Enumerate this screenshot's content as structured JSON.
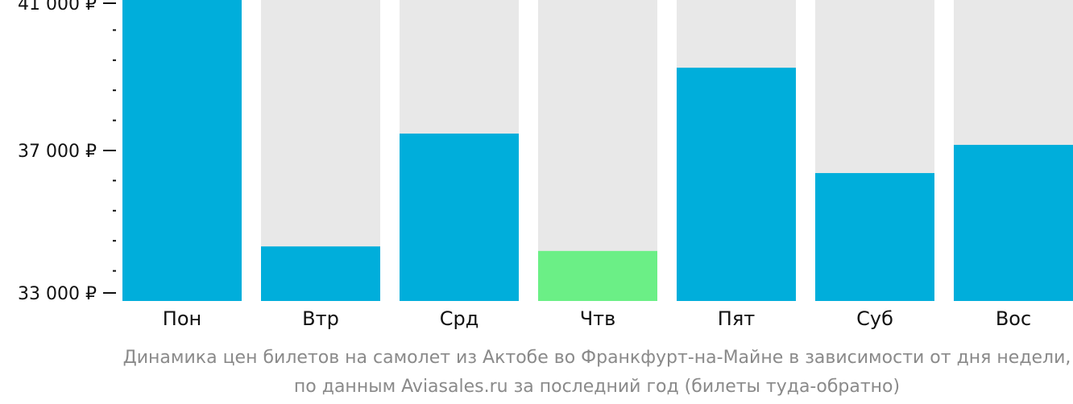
{
  "chart_data": {
    "type": "bar",
    "categories": [
      "Пон",
      "Втр",
      "Срд",
      "Чтв",
      "Пят",
      "Суб",
      "Вос"
    ],
    "values": [
      41000,
      34450,
      37450,
      34330,
      39200,
      36400,
      37150
    ],
    "highlight_index": 3,
    "ylim": [
      33000,
      41000
    ],
    "yticks": [
      {
        "value": 41000,
        "label": "41 000 ₽"
      },
      {
        "value": 37000,
        "label": "37 000 ₽"
      },
      {
        "value": 33000,
        "label": "33 000 ₽"
      }
    ],
    "minor_tick_step": 800,
    "grid": false,
    "colors": {
      "bar": "#00aedb",
      "highlight": "#6bef86",
      "bar_background": "#e8e8e8",
      "caption": "#8a8a8a"
    },
    "caption": [
      "Динамика цен билетов на самолет из Актобе во Франкфурт-на-Майне в зависимости от дня недели,",
      "по данным Aviasales.ru за последний год (билеты туда-обратно)"
    ]
  }
}
